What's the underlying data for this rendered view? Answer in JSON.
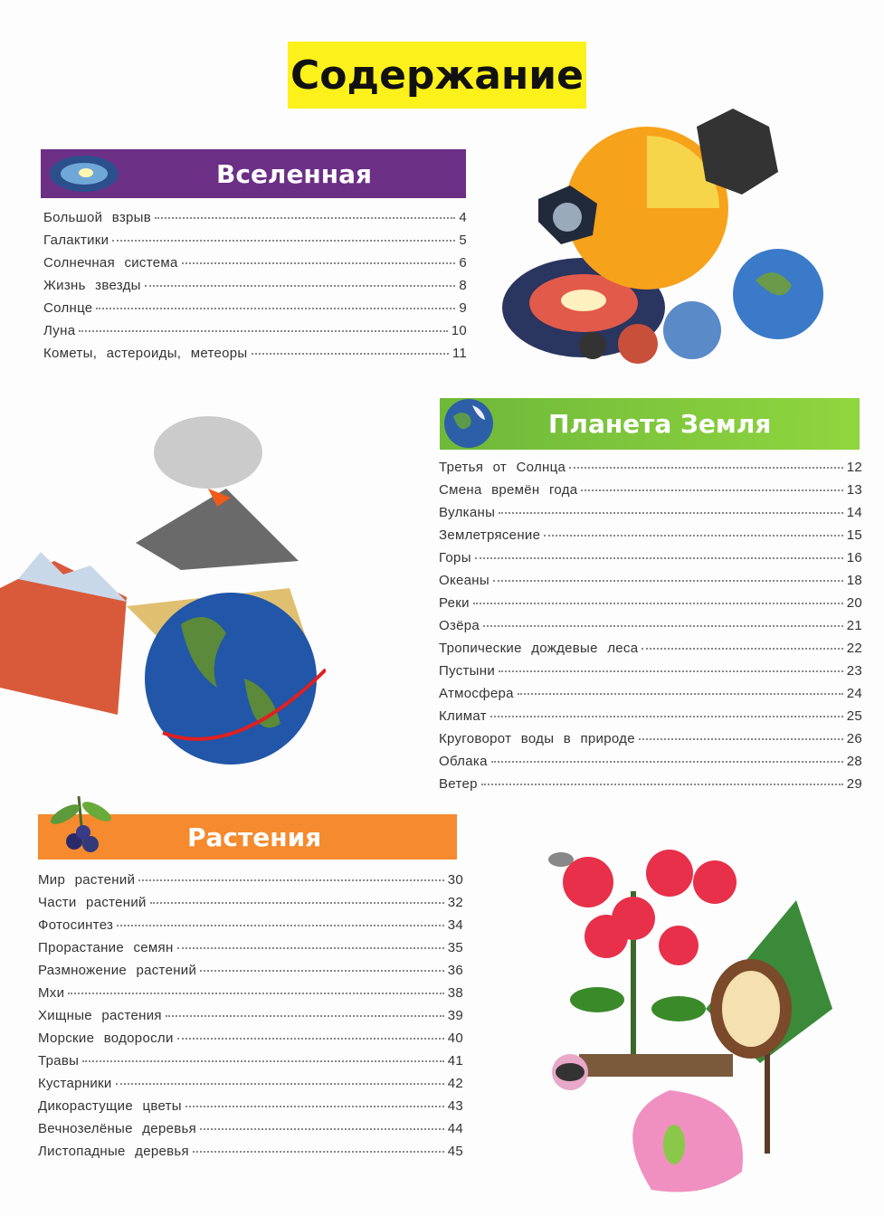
{
  "title": "Содержание",
  "sections": [
    {
      "title": "Вселенная",
      "color": "#6b2f86",
      "icon": "galaxy-icon",
      "items": [
        [
          "Большой взрыв",
          "4"
        ],
        [
          "Галактики",
          "5"
        ],
        [
          "Солнечная система",
          "6"
        ],
        [
          "Жизнь звезды",
          "8"
        ],
        [
          "Солнце",
          "9"
        ],
        [
          "Луна",
          "10"
        ],
        [
          "Кометы, астероиды, метеоры",
          "11"
        ]
      ]
    },
    {
      "title": "Планета Земля",
      "color": "#7cc63a",
      "icon": "earth-icon",
      "items": [
        [
          "Третья от Солнца",
          "12"
        ],
        [
          "Смена времён года",
          "13"
        ],
        [
          "Вулканы",
          "14"
        ],
        [
          "Землетрясение",
          "15"
        ],
        [
          "Горы",
          "16"
        ],
        [
          "Океаны",
          "18"
        ],
        [
          "Реки",
          "20"
        ],
        [
          "Озёра",
          "21"
        ],
        [
          "Тропические дождевые леса",
          "22"
        ],
        [
          "Пустыни",
          "23"
        ],
        [
          "Атмосфера",
          "24"
        ],
        [
          "Климат",
          "25"
        ],
        [
          "Круговорот воды в природе",
          "26"
        ],
        [
          "Облака",
          "28"
        ],
        [
          "Ветер",
          "29"
        ]
      ]
    },
    {
      "title": "Растения",
      "color": "#f58a2e",
      "icon": "berries-icon",
      "items": [
        [
          "Мир растений",
          "30"
        ],
        [
          "Части растений",
          "32"
        ],
        [
          "Фотосинтез",
          "34"
        ],
        [
          "Прорастание семян",
          "35"
        ],
        [
          "Размножение растений",
          "36"
        ],
        [
          "Мхи",
          "38"
        ],
        [
          "Хищные растения",
          "39"
        ],
        [
          "Морские водоросли",
          "40"
        ],
        [
          "Травы",
          "41"
        ],
        [
          "Кустарники",
          "42"
        ],
        [
          "Дикорастущие цветы",
          "43"
        ],
        [
          "Вечнозелёные деревья",
          "44"
        ],
        [
          "Листопадные деревья",
          "45"
        ]
      ]
    }
  ]
}
